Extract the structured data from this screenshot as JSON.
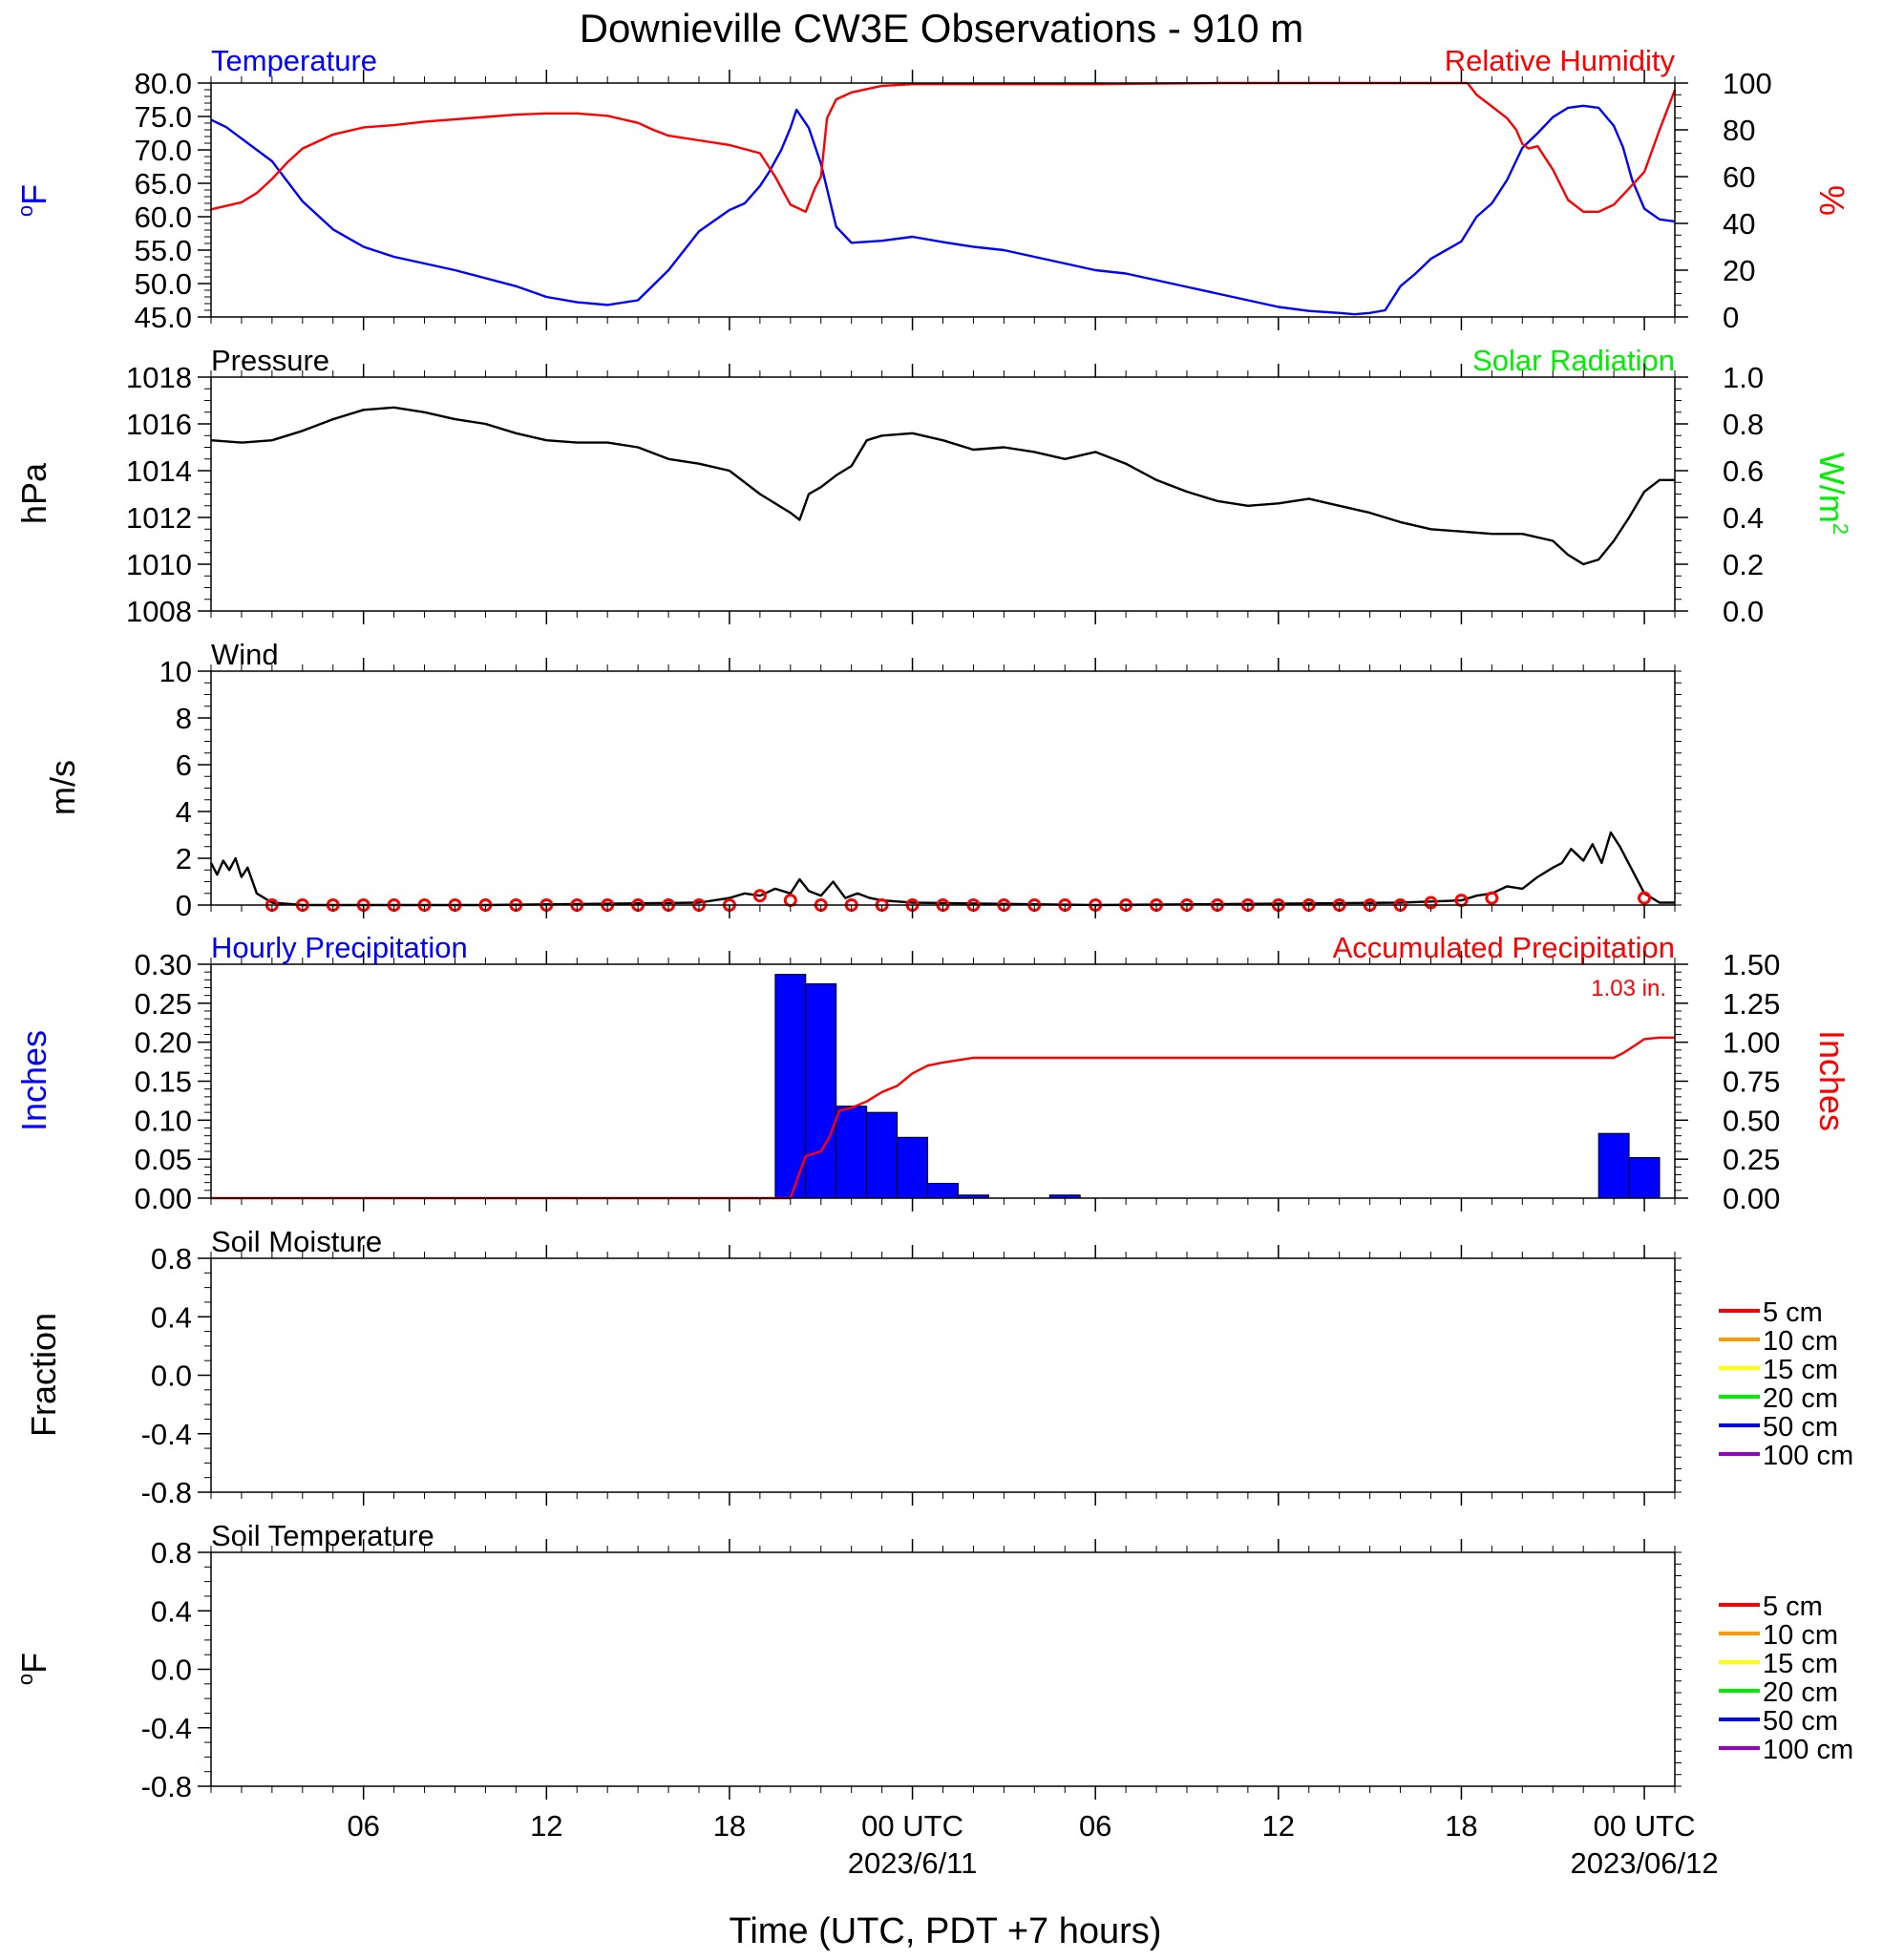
{
  "title": "Downieville CW3E Observations - 910 m",
  "xaxis": {
    "label": "Time (UTC, PDT +7 hours)",
    "ticks": [
      {
        "h": 6,
        "label": "06",
        "sub": ""
      },
      {
        "h": 12,
        "label": "12",
        "sub": ""
      },
      {
        "h": 18,
        "label": "18",
        "sub": ""
      },
      {
        "h": 24,
        "label": "00 UTC",
        "sub": "2023/6/11"
      },
      {
        "h": 30,
        "label": "06",
        "sub": ""
      },
      {
        "h": 36,
        "label": "12",
        "sub": ""
      },
      {
        "h": 42,
        "label": "18",
        "sub": ""
      },
      {
        "h": 48,
        "label": "00 UTC",
        "sub": "2023/06/12"
      }
    ]
  },
  "panels": {
    "temp_rh": {
      "left_title": "Temperature",
      "right_title": "Relative Humidity",
      "left_unit_sup": "o",
      "left_unit": "F",
      "right_unit": "%",
      "left_ticks": [
        "45.0",
        "50.0",
        "55.0",
        "60.0",
        "65.0",
        "70.0",
        "75.0",
        "80.0"
      ],
      "right_ticks": [
        "0",
        "20",
        "40",
        "60",
        "80",
        "100"
      ],
      "colors": {
        "left": "#0000ff",
        "right": "#ff0000"
      }
    },
    "pressure": {
      "left_title": "Pressure",
      "right_title": "Solar Radiation",
      "left_unit": "hPa",
      "right_unit": "W/m",
      "right_unit_sup": "2",
      "left_ticks": [
        "1008",
        "1010",
        "1012",
        "1014",
        "1016",
        "1018"
      ],
      "right_ticks": [
        "0.0",
        "0.2",
        "0.4",
        "0.6",
        "0.8",
        "1.0"
      ],
      "colors": {
        "left": "#000000",
        "right": "#00ee00"
      }
    },
    "wind": {
      "left_title": "Wind",
      "left_unit": "m/s",
      "left_ticks": [
        "0",
        "2",
        "4",
        "6",
        "8",
        "10"
      ]
    },
    "precip": {
      "left_title": "Hourly Precipitation",
      "right_title": "Accumulated Precipitation",
      "total_label": "1.03 in.",
      "left_unit": "Inches",
      "right_unit": "Inches",
      "left_ticks": [
        "0.00",
        "0.05",
        "0.10",
        "0.15",
        "0.20",
        "0.25",
        "0.30"
      ],
      "right_ticks": [
        "0.00",
        "0.25",
        "0.50",
        "0.75",
        "1.00",
        "1.25",
        "1.50"
      ],
      "colors": {
        "left": "#0000ff",
        "right": "#ff0000"
      }
    },
    "soil_moisture": {
      "left_title": "Soil Moisture",
      "left_unit": "Fraction",
      "left_ticks": [
        "-0.8",
        "-0.4",
        "0.0",
        "0.4",
        "0.8"
      ],
      "legend": [
        {
          "label": "5 cm",
          "color": "#ff0000"
        },
        {
          "label": "10 cm",
          "color": "#ff9900"
        },
        {
          "label": "15 cm",
          "color": "#ffff00"
        },
        {
          "label": "20 cm",
          "color": "#00ee00"
        },
        {
          "label": "50 cm",
          "color": "#0000ff"
        },
        {
          "label": "100 cm",
          "color": "#9900cc"
        }
      ]
    },
    "soil_temp": {
      "left_title": "Soil Temperature",
      "left_unit_sup": "o",
      "left_unit": "F",
      "left_ticks": [
        "-0.8",
        "-0.4",
        "0.0",
        "0.4",
        "0.8"
      ],
      "legend": [
        {
          "label": "5 cm",
          "color": "#ff0000"
        },
        {
          "label": "10 cm",
          "color": "#ff9900"
        },
        {
          "label": "15 cm",
          "color": "#ffff00"
        },
        {
          "label": "20 cm",
          "color": "#00ee00"
        },
        {
          "label": "50 cm",
          "color": "#0000ff"
        },
        {
          "label": "100 cm",
          "color": "#9900cc"
        }
      ]
    }
  },
  "chart_data": [
    {
      "type": "line",
      "title": "Temperature",
      "ylabel": "oF",
      "x_unit": "hours since 2023-06-10 00 UTC",
      "xlim": [
        1,
        49
      ],
      "ylim": [
        45,
        80
      ],
      "series": [
        {
          "name": "Temperature",
          "color": "#0000ff",
          "x": [
            1,
            1.5,
            2,
            2.5,
            3,
            3.5,
            4,
            5,
            6,
            7,
            8,
            9,
            10,
            11,
            12,
            13,
            14,
            15,
            16,
            17,
            18,
            18.5,
            19,
            19.3,
            19.7,
            20,
            20.2,
            20.6,
            21,
            21.5,
            22,
            23,
            24,
            25,
            26,
            27,
            28,
            29,
            30,
            31,
            32,
            33,
            34,
            35,
            36,
            37,
            38,
            38.5,
            39,
            39.5,
            40,
            40.5,
            41,
            42,
            42.5,
            43,
            43.5,
            44,
            44.5,
            45,
            45.5,
            46,
            46.5,
            47,
            47.3,
            47.6,
            48,
            48.5,
            49
          ],
          "y": [
            74.5,
            73.4,
            71.7,
            70.0,
            68.3,
            65.3,
            62.3,
            58.1,
            55.5,
            54.0,
            53.0,
            52.0,
            50.8,
            49.6,
            48.0,
            47.2,
            46.8,
            47.5,
            52.0,
            57.8,
            61.0,
            62.0,
            64.6,
            66.7,
            70.0,
            73.3,
            76.0,
            73.3,
            67.9,
            58.5,
            56.1,
            56.4,
            57.0,
            56.2,
            55.5,
            55.0,
            54.0,
            53.0,
            52.0,
            51.5,
            50.5,
            49.5,
            48.5,
            47.5,
            46.5,
            45.9,
            45.6,
            45.4,
            45.6,
            46.0,
            49.6,
            51.5,
            53.7,
            56.3,
            60.0,
            62.0,
            65.5,
            70.3,
            72.5,
            74.9,
            76.3,
            76.6,
            76.3,
            73.6,
            70.4,
            65.5,
            61.2,
            59.6,
            59.3
          ]
        }
      ]
    },
    {
      "type": "line",
      "title": "Relative Humidity",
      "ylabel": "%",
      "x_unit": "hours since 2023-06-10 00 UTC",
      "xlim": [
        1,
        49
      ],
      "ylim": [
        0,
        100
      ],
      "series": [
        {
          "name": "Relative Humidity",
          "color": "#ff0000",
          "x": [
            1,
            2,
            2.5,
            3,
            3.5,
            4,
            5,
            6,
            7,
            8,
            9,
            10,
            11,
            12,
            13,
            14,
            15,
            15.5,
            16,
            17,
            18,
            19,
            19.5,
            20,
            20.5,
            20.8,
            21,
            21.2,
            21.5,
            22,
            23,
            24,
            26,
            28,
            30,
            32,
            34,
            36,
            38,
            40,
            42,
            42.2,
            42.5,
            43,
            43.5,
            43.8,
            44,
            44.2,
            44.5,
            45,
            45.5,
            46,
            46.5,
            47,
            47.5,
            48,
            48.5,
            49
          ],
          "y": [
            46,
            49,
            53,
            59,
            66,
            72,
            78,
            81,
            82,
            83.5,
            84.5,
            85.5,
            86.5,
            87,
            87,
            86,
            83,
            80,
            77.5,
            75.5,
            73.5,
            70,
            60,
            48,
            45,
            55,
            60,
            85,
            93,
            96,
            98.8,
            99.5,
            99.5,
            99.5,
            99.5,
            99.8,
            100,
            100,
            100,
            100,
            100,
            100,
            95,
            90,
            85,
            80,
            74,
            72,
            73,
            63,
            50,
            45,
            45,
            48,
            55,
            62,
            80,
            97
          ]
        }
      ]
    },
    {
      "type": "line",
      "title": "Pressure",
      "ylabel": "hPa",
      "x_unit": "hours since 2023-06-10 00 UTC",
      "xlim": [
        1,
        49
      ],
      "ylim": [
        1008,
        1018
      ],
      "series": [
        {
          "name": "Pressure",
          "color": "#000000",
          "x": [
            1,
            2,
            3,
            4,
            5,
            6,
            7,
            8,
            9,
            10,
            11,
            12,
            13,
            14,
            15,
            16,
            17,
            18,
            19,
            20,
            20.3,
            20.6,
            21,
            21.5,
            22,
            22.5,
            23,
            24,
            25,
            26,
            27,
            28,
            29,
            30,
            31,
            32,
            33,
            34,
            35,
            36,
            37,
            38,
            39,
            40,
            41,
            42,
            43,
            44,
            45,
            45.5,
            46,
            46.5,
            47,
            47.5,
            48,
            48.5,
            49
          ],
          "y": [
            1015.3,
            1015.2,
            1015.3,
            1015.7,
            1016.2,
            1016.6,
            1016.7,
            1016.5,
            1016.2,
            1016.0,
            1015.6,
            1015.3,
            1015.2,
            1015.2,
            1015.0,
            1014.5,
            1014.3,
            1014.0,
            1013.0,
            1012.2,
            1011.9,
            1013.0,
            1013.3,
            1013.8,
            1014.2,
            1015.3,
            1015.5,
            1015.6,
            1015.3,
            1014.9,
            1015.0,
            1014.8,
            1014.5,
            1014.8,
            1014.3,
            1013.6,
            1013.1,
            1012.7,
            1012.5,
            1012.6,
            1012.8,
            1012.5,
            1012.2,
            1011.8,
            1011.5,
            1011.4,
            1011.3,
            1011.3,
            1011.0,
            1010.4,
            1010.0,
            1010.2,
            1011.0,
            1012.0,
            1013.1,
            1013.6,
            1013.6
          ]
        }
      ]
    },
    {
      "type": "line",
      "title": "Wind",
      "ylabel": "m/s",
      "x_unit": "hours since 2023-06-10 00 UTC",
      "xlim": [
        1,
        49
      ],
      "ylim": [
        0,
        10
      ],
      "series": [
        {
          "name": "Wind speed",
          "color": "#000000",
          "x": [
            1,
            1.2,
            1.4,
            1.6,
            1.8,
            2,
            2.2,
            2.5,
            3,
            4,
            10,
            17,
            18,
            18.5,
            19,
            19.5,
            20,
            20.3,
            20.6,
            21,
            21.4,
            21.8,
            22.2,
            22.6,
            23,
            24,
            30,
            40,
            42,
            42.5,
            43,
            43.5,
            44,
            44.5,
            45,
            45.3,
            45.6,
            46,
            46.3,
            46.6,
            46.9,
            47.2,
            47.6,
            48,
            48.5,
            49
          ],
          "y": [
            1.8,
            1.3,
            1.9,
            1.5,
            2.0,
            1.2,
            1.6,
            0.5,
            0.1,
            0.0,
            0.0,
            0.1,
            0.3,
            0.5,
            0.4,
            0.7,
            0.5,
            1.1,
            0.6,
            0.4,
            1.0,
            0.3,
            0.5,
            0.3,
            0.2,
            0.1,
            0.0,
            0.1,
            0.2,
            0.4,
            0.5,
            0.8,
            0.7,
            1.2,
            1.6,
            1.8,
            2.4,
            1.9,
            2.6,
            1.8,
            3.1,
            2.5,
            1.5,
            0.5,
            0.1,
            0.1
          ]
        },
        {
          "name": "Wind direction barbs",
          "color": "#ff0000",
          "x": [
            3,
            4,
            5,
            6,
            7,
            8,
            9,
            10,
            11,
            12,
            13,
            14,
            15,
            16,
            17,
            18,
            19,
            20,
            21,
            22,
            23,
            24,
            25,
            26,
            27,
            28,
            29,
            30,
            31,
            32,
            33,
            34,
            35,
            36,
            37,
            38,
            39,
            40,
            41,
            42,
            43,
            48
          ],
          "y": [
            0,
            0,
            0,
            0,
            0,
            0,
            0,
            0,
            0,
            0,
            0,
            0,
            0,
            0,
            0,
            0,
            0.4,
            0.2,
            0,
            0,
            0,
            0,
            0,
            0,
            0,
            0,
            0,
            0,
            0,
            0,
            0,
            0,
            0,
            0,
            0,
            0,
            0,
            0,
            0.1,
            0.2,
            0.3,
            0.3
          ]
        }
      ]
    },
    {
      "type": "bar",
      "title": "Hourly Precipitation",
      "ylabel": "Inches",
      "x_unit": "hours since 2023-06-10 00 UTC",
      "xlim": [
        1,
        49
      ],
      "ylim": [
        0,
        0.3
      ],
      "series": [
        {
          "name": "Hourly Precipitation",
          "color": "#0000ff",
          "x": [
            20,
            21,
            22,
            23,
            24,
            25,
            26,
            29,
            47,
            48
          ],
          "values": [
            0.287,
            0.275,
            0.118,
            0.11,
            0.078,
            0.019,
            0.004,
            0.004,
            0.083,
            0.052
          ]
        }
      ]
    },
    {
      "type": "line",
      "title": "Accumulated Precipitation",
      "ylabel": "Inches",
      "x_unit": "hours since 2023-06-10 00 UTC",
      "xlim": [
        1,
        49
      ],
      "ylim": [
        0,
        1.5
      ],
      "series": [
        {
          "name": "Accumulated Precipitation",
          "color": "#ff0000",
          "x": [
            1,
            20.0,
            20.5,
            21,
            21.3,
            21.6,
            22,
            22.5,
            23,
            23.5,
            24,
            24.5,
            25,
            26,
            28,
            32,
            40,
            46,
            47,
            47.3,
            47.7,
            48,
            48.5,
            49
          ],
          "y": [
            0,
            0,
            0.27,
            0.3,
            0.4,
            0.56,
            0.58,
            0.62,
            0.68,
            0.72,
            0.8,
            0.85,
            0.87,
            0.9,
            0.9,
            0.9,
            0.9,
            0.9,
            0.9,
            0.93,
            0.98,
            1.02,
            1.03,
            1.03
          ]
        }
      ]
    }
  ]
}
